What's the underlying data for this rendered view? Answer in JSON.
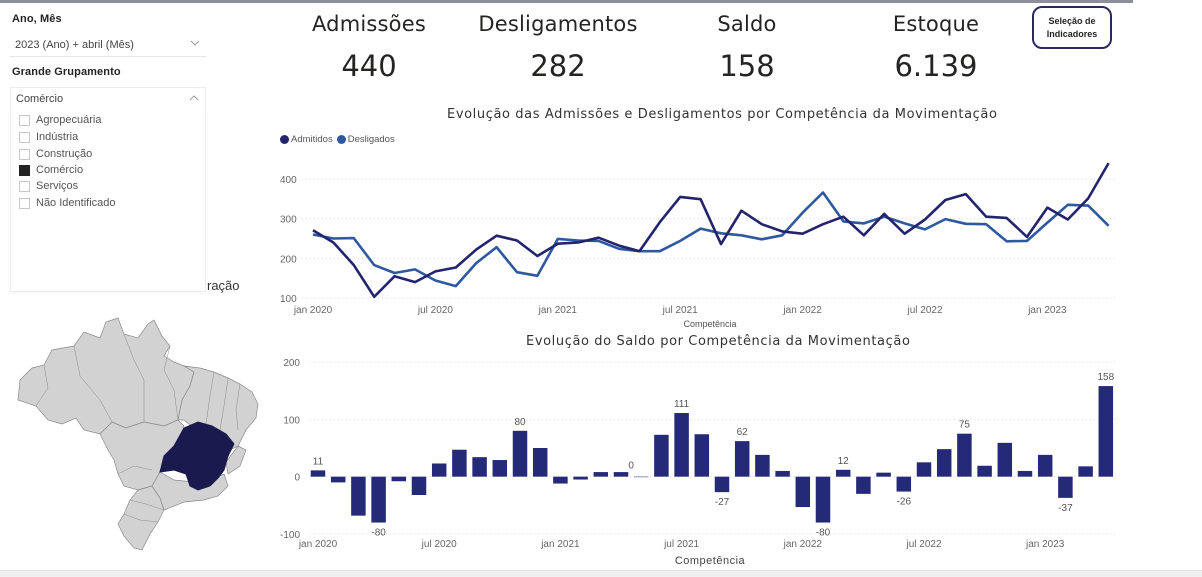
{
  "filters": {
    "period": {
      "label": "Ano, Mês",
      "value": "2023 (Ano) + abril (Mês)"
    },
    "group": {
      "label": "Grande Grupamento",
      "value": "Comércio",
      "options": [
        {
          "label": "Agropecuária",
          "checked": false
        },
        {
          "label": "Indústria",
          "checked": false
        },
        {
          "label": "Construção",
          "checked": false
        },
        {
          "label": "Comércio",
          "checked": true
        },
        {
          "label": "Serviços",
          "checked": false
        },
        {
          "label": "Não Identificado",
          "checked": false
        }
      ]
    }
  },
  "map": {
    "title_visible_fragment": "ração",
    "highlighted_state": "Minas Gerais",
    "highlight_color": "#1a1a4e",
    "base_color": "#d2d2d2"
  },
  "kpis": [
    {
      "label": "Admissões",
      "value": "440"
    },
    {
      "label": "Desligamentos",
      "value": "282"
    },
    {
      "label": "Saldo",
      "value": "158"
    },
    {
      "label": "Estoque",
      "value": "6.139"
    }
  ],
  "indicator_button": {
    "label": "Seleção de Indicadores"
  },
  "colors": {
    "admitidos": "#24246e",
    "desligados": "#2e58a0",
    "saldo_bar": "#252a78"
  },
  "chart_data": [
    {
      "type": "line",
      "title": "Evolução das Admissões e Desligamentos por Competência da Movimentação",
      "xlabel": "Competência",
      "ylabel": "",
      "ylim": [
        100,
        400
      ],
      "yticks": [
        100,
        200,
        300,
        400
      ],
      "grid": true,
      "legend": "top-left",
      "x_tick_labels": [
        "jan 2020",
        "jul 2020",
        "jan 2021",
        "jul 2021",
        "jan 2022",
        "jul 2022",
        "jan 2023"
      ],
      "x_tick_index": [
        0,
        6,
        12,
        18,
        24,
        30,
        36
      ],
      "x": [
        "2020-01",
        "2020-02",
        "2020-03",
        "2020-04",
        "2020-05",
        "2020-06",
        "2020-07",
        "2020-08",
        "2020-09",
        "2020-10",
        "2020-11",
        "2020-12",
        "2021-01",
        "2021-02",
        "2021-03",
        "2021-04",
        "2021-05",
        "2021-06",
        "2021-07",
        "2021-08",
        "2021-09",
        "2021-10",
        "2021-11",
        "2021-12",
        "2022-01",
        "2022-02",
        "2022-03",
        "2022-04",
        "2022-05",
        "2022-06",
        "2022-07",
        "2022-08",
        "2022-09",
        "2022-10",
        "2022-11",
        "2022-12",
        "2023-01",
        "2023-02",
        "2023-03",
        "2023-04"
      ],
      "series": [
        {
          "name": "Admitidos",
          "values": [
            271,
            240,
            183,
            103,
            155,
            140,
            167,
            177,
            222,
            257,
            245,
            206,
            237,
            240,
            252,
            232,
            218,
            291,
            355,
            349,
            236,
            320,
            286,
            268,
            262,
            286,
            305,
            258,
            312,
            262,
            298,
            347,
            362,
            305,
            302,
            254,
            328,
            298,
            351,
            440
          ]
        },
        {
          "name": "Desligados",
          "values": [
            260,
            250,
            251,
            183,
            163,
            172,
            144,
            130,
            188,
            228,
            165,
            156,
            249,
            245,
            244,
            224,
            218,
            218,
            244,
            275,
            263,
            258,
            248,
            258,
            315,
            366,
            293,
            288,
            305,
            288,
            273,
            299,
            287,
            286,
            243,
            244,
            290,
            335,
            333,
            282
          ]
        }
      ]
    },
    {
      "type": "bar",
      "title": "Evolução do Saldo por Competência da Movimentação",
      "xlabel": "Competência",
      "ylabel": "",
      "ylim": [
        -100,
        200
      ],
      "yticks": [
        -100,
        0,
        100,
        200
      ],
      "grid": true,
      "x_tick_labels": [
        "jan 2020",
        "jul 2020",
        "jan 2021",
        "jul 2021",
        "jan 2022",
        "jul 2022",
        "jan 2023"
      ],
      "x_tick_index": [
        0,
        6,
        12,
        18,
        24,
        30,
        36
      ],
      "categories": [
        "2020-01",
        "2020-02",
        "2020-03",
        "2020-04",
        "2020-05",
        "2020-06",
        "2020-07",
        "2020-08",
        "2020-09",
        "2020-10",
        "2020-11",
        "2020-12",
        "2021-01",
        "2021-02",
        "2021-03",
        "2021-04",
        "2021-05",
        "2021-06",
        "2021-07",
        "2021-08",
        "2021-09",
        "2021-10",
        "2021-11",
        "2021-12",
        "2022-01",
        "2022-02",
        "2022-03",
        "2022-04",
        "2022-05",
        "2022-06",
        "2022-07",
        "2022-08",
        "2022-09",
        "2022-10",
        "2022-11",
        "2022-12",
        "2023-01",
        "2023-02",
        "2023-03",
        "2023-04"
      ],
      "values": [
        11,
        -10,
        -68,
        -80,
        -8,
        -32,
        23,
        47,
        34,
        29,
        80,
        50,
        -12,
        -5,
        8,
        8,
        0,
        73,
        111,
        74,
        -27,
        62,
        38,
        10,
        -53,
        -80,
        12,
        -30,
        7,
        -26,
        25,
        48,
        75,
        19,
        59,
        10,
        38,
        -37,
        18,
        158
      ],
      "data_labels": [
        {
          "index": 0,
          "text": "11"
        },
        {
          "index": 3,
          "text": "-80"
        },
        {
          "index": 10,
          "text": "80"
        },
        {
          "index": 16,
          "text": "0"
        },
        {
          "index": 18,
          "text": "111"
        },
        {
          "index": 20,
          "text": "-27"
        },
        {
          "index": 21,
          "text": "62"
        },
        {
          "index": 25,
          "text": "-80"
        },
        {
          "index": 26,
          "text": "12"
        },
        {
          "index": 29,
          "text": "-26"
        },
        {
          "index": 32,
          "text": "75"
        },
        {
          "index": 37,
          "text": "-37"
        },
        {
          "index": 39,
          "text": "158"
        }
      ]
    }
  ]
}
